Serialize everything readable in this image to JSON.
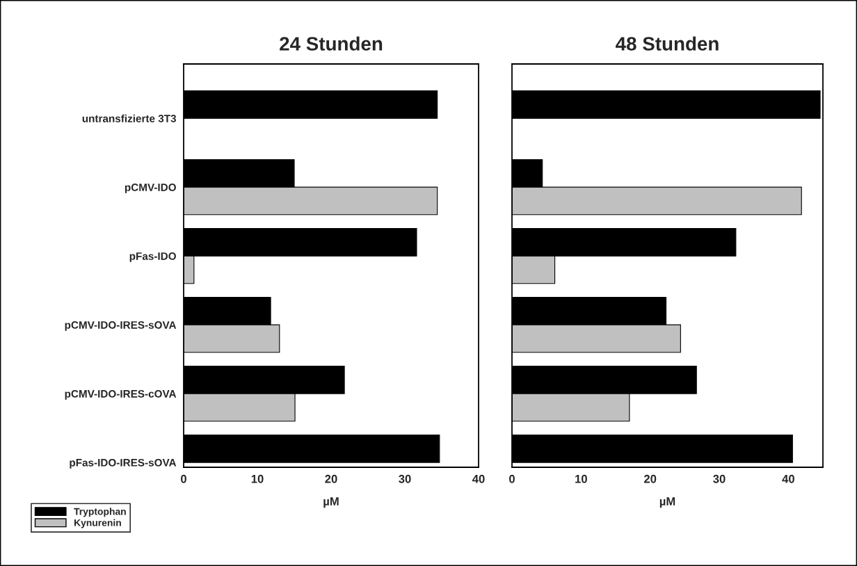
{
  "chart_data": [
    {
      "type": "bar",
      "orientation": "horizontal",
      "title": "24 Stunden",
      "xlabel": "µM",
      "categories": [
        "untransfizierte 3T3",
        "pCMV-IDO",
        "pFas-IDO",
        "pCMV-IDO-IRES-sOVA",
        "pCMV-IDO-IRES-cOVA",
        "pFas-IDO-IRES-sOVA"
      ],
      "series": [
        {
          "name": "Tryptophan",
          "color": "#000000",
          "values": [
            34.4,
            15.0,
            31.6,
            11.8,
            21.8,
            34.7
          ]
        },
        {
          "name": "Kynurenin",
          "color": "#c0c0c0",
          "values": [
            null,
            34.4,
            1.4,
            13.0,
            15.1,
            null
          ]
        }
      ],
      "xlim": [
        0,
        40
      ],
      "xticks": [
        0,
        10,
        20,
        30,
        40
      ],
      "grid": false,
      "legend": "bottom left"
    },
    {
      "type": "bar",
      "orientation": "horizontal",
      "title": "48 Stunden",
      "xlabel": "µM",
      "categories": [
        null,
        null,
        null,
        null,
        null,
        null
      ],
      "series": [
        {
          "color": "#000000",
          "values": [
            44.6,
            4.4,
            32.4,
            22.3,
            26.7,
            40.6
          ]
        },
        {
          "color": "#c0c0c0",
          "values": [
            null,
            41.9,
            6.2,
            24.4,
            17.0,
            null
          ]
        }
      ],
      "xlim": [
        0,
        45
      ],
      "xticks": [
        0,
        10,
        20,
        30,
        40
      ],
      "grid": false,
      "tick_labels": "x"
    }
  ]
}
